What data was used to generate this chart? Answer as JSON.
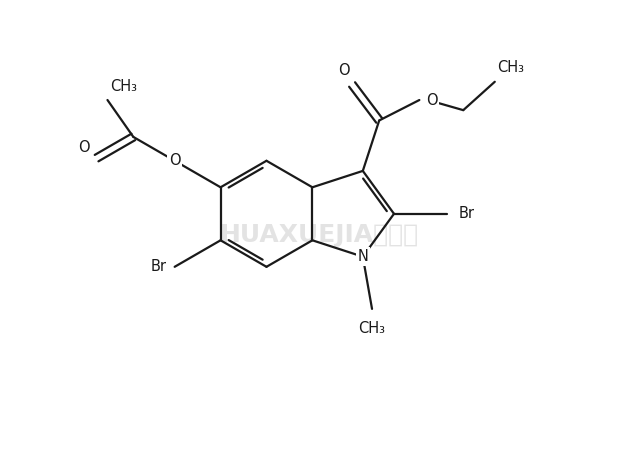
{
  "bg_color": "#ffffff",
  "line_color": "#1a1a1a",
  "lw": 1.6,
  "fs": 10.5,
  "figsize": [
    6.39,
    4.7
  ],
  "dpi": 100,
  "wm_text": "HUAXUEJIA化学加",
  "wm_color": "#c8c8c8",
  "wm_alpha": 0.5,
  "xlim": [
    -2.5,
    9.5
  ],
  "ylim": [
    -2.2,
    5.8
  ]
}
